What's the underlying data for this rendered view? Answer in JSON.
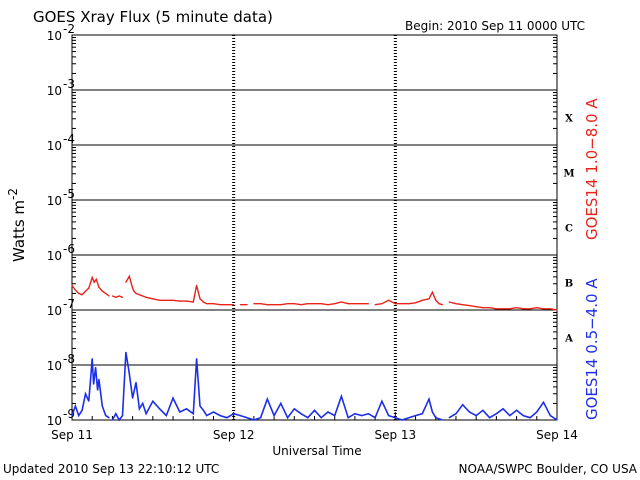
{
  "chart_data": {
    "type": "line",
    "title": "GOES Xray Flux (5 minute data)",
    "begin": "Begin:  2010 Sep 11 0000 UTC",
    "xlabel": "Universal Time",
    "ylabel": "Watts m",
    "ylabel_sup": "-2",
    "footer_left": "Updated 2010 Sep 13 22:10:12 UTC",
    "footer_right": "NOAA/SWPC Boulder, CO USA",
    "x_ticks": [
      "Sep 11",
      "Sep 12",
      "Sep 13",
      "Sep 14"
    ],
    "x_range_hours": [
      0,
      72
    ],
    "y_scale": "log",
    "y_ticks": [
      "10",
      "10",
      "10",
      "10",
      "10",
      "10",
      "10",
      "10"
    ],
    "y_tick_exponents": [
      "-2",
      "-3",
      "-4",
      "-5",
      "-6",
      "-7",
      "-8",
      "-9"
    ],
    "ylim": [
      1e-09,
      0.01
    ],
    "flare_classes": [
      "X",
      "M",
      "C",
      "B",
      "A"
    ],
    "series": [
      {
        "name": "GOES14 1.0−8.0 A",
        "color": "#e8231a",
        "x": [
          0,
          0.5,
          1,
          1.5,
          2,
          2.5,
          3,
          3.3,
          3.6,
          4,
          4.5,
          5,
          5.5,
          6,
          6.5,
          7,
          7.5,
          8,
          8.5,
          9,
          9.2,
          9.5,
          10,
          10.5,
          11,
          12,
          13,
          14,
          15,
          16,
          17,
          18,
          18.5,
          19,
          19.5,
          20,
          21,
          22,
          23,
          24,
          25,
          26,
          27,
          28,
          29,
          30,
          31,
          32,
          33,
          34,
          35,
          36,
          37,
          38,
          39,
          40,
          41,
          42,
          43,
          44,
          45,
          46,
          47,
          48,
          49,
          50,
          51,
          52,
          53,
          53.5,
          54,
          54.5,
          55,
          56,
          57,
          58,
          59,
          60,
          61,
          62,
          63,
          64,
          65,
          66,
          67,
          68,
          69,
          70,
          71,
          72
        ],
        "y": [
          2.8e-07,
          2.3e-07,
          2e-07,
          1.9e-07,
          2.2e-07,
          2.5e-07,
          3.9e-07,
          3.2e-07,
          3.6e-07,
          2.6e-07,
          2.2e-07,
          2e-07,
          1.8e-07,
          1.8e-07,
          1.7e-07,
          1.8e-07,
          1.7e-07,
          3.2e-07,
          4.1e-07,
          2.5e-07,
          2.2e-07,
          2e-07,
          1.9e-07,
          1.8e-07,
          1.7e-07,
          1.6e-07,
          1.5e-07,
          1.5e-07,
          1.5e-07,
          1.45e-07,
          1.45e-07,
          1.4e-07,
          2.8e-07,
          1.6e-07,
          1.4e-07,
          1.3e-07,
          1.3e-07,
          1.25e-07,
          1.25e-07,
          1.25e-07,
          1.25e-07,
          1.25e-07,
          1.3e-07,
          1.3e-07,
          1.25e-07,
          1.25e-07,
          1.25e-07,
          1.3e-07,
          1.3e-07,
          1.25e-07,
          1.3e-07,
          1.3e-07,
          1.3e-07,
          1.25e-07,
          1.3e-07,
          1.4e-07,
          1.3e-07,
          1.3e-07,
          1.3e-07,
          1.3e-07,
          1.25e-07,
          1.3e-07,
          1.5e-07,
          1.3e-07,
          1.3e-07,
          1.3e-07,
          1.35e-07,
          1.5e-07,
          1.6e-07,
          2.1e-07,
          1.5e-07,
          1.3e-07,
          1.25e-07,
          1.4e-07,
          1.3e-07,
          1.25e-07,
          1.2e-07,
          1.15e-07,
          1.1e-07,
          1.1e-07,
          1.05e-07,
          1.05e-07,
          1.05e-07,
          1.1e-07,
          1.05e-07,
          1.05e-07,
          1.1e-07,
          1.05e-07,
          1.05e-07,
          1e-07
        ],
        "gaps_after_x": [
          5.5,
          7.5,
          24,
          26,
          44,
          55
        ],
        "scale": "linear-value"
      },
      {
        "name": "GOES14 0.5−4.0 A",
        "color": "#1d2eea",
        "x": [
          0,
          0.5,
          1,
          1.5,
          2,
          2.5,
          3,
          3.2,
          3.5,
          3.8,
          4,
          4.5,
          5,
          5.5,
          6,
          6.5,
          7,
          7.5,
          8,
          8.5,
          9,
          9.5,
          10,
          10.5,
          11,
          12,
          13,
          14,
          15,
          16,
          17,
          18,
          18.5,
          19,
          19.5,
          20,
          21,
          22,
          23,
          24,
          25,
          26,
          27,
          28,
          29,
          30,
          31,
          32,
          33,
          34,
          35,
          36,
          37,
          38,
          39,
          40,
          41,
          42,
          43,
          44,
          45,
          46,
          47,
          48,
          49,
          50,
          51,
          52,
          53,
          53.5,
          54,
          55,
          56,
          57,
          58,
          59,
          60,
          61,
          62,
          63,
          64,
          65,
          66,
          67,
          68,
          69,
          70,
          71,
          72
        ],
        "y": [
          1.2e-09,
          1.8e-09,
          1.2e-09,
          1.5e-09,
          3e-09,
          2.2e-09,
          1.3e-08,
          4.5e-09,
          9e-09,
          3.5e-09,
          5.5e-09,
          1.8e-09,
          1.2e-09,
          1.1e-09,
          1e-09,
          1.3e-09,
          1e-09,
          1.2e-09,
          1.7e-08,
          7e-09,
          2.5e-09,
          4.8e-09,
          1.6e-09,
          2e-09,
          1.3e-09,
          2.2e-09,
          1.6e-09,
          1.2e-09,
          2.5e-09,
          1.4e-09,
          1.6e-09,
          1.3e-09,
          1.3e-08,
          1.8e-09,
          1.5e-09,
          1.2e-09,
          1.4e-09,
          1.2e-09,
          1.1e-09,
          1.3e-09,
          1.2e-09,
          1.1e-09,
          1e-09,
          1.1e-09,
          2.4e-09,
          1.2e-09,
          2e-09,
          1.1e-09,
          1.6e-09,
          1.3e-09,
          1.1e-09,
          1.5e-09,
          1.1e-09,
          1.4e-09,
          1.2e-09,
          2.7e-09,
          1.1e-09,
          1.3e-09,
          1.2e-09,
          1.3e-09,
          1.1e-09,
          2.2e-09,
          1.2e-09,
          1.1e-09,
          1e-09,
          1.1e-09,
          1.2e-09,
          1.3e-09,
          2.4e-09,
          1.4e-09,
          1.1e-09,
          1e-09,
          1.1e-09,
          1.3e-09,
          1.9e-09,
          1.4e-09,
          1.2e-09,
          1.5e-09,
          1.1e-09,
          1.3e-09,
          1.6e-09,
          1.2e-09,
          1.5e-09,
          1.2e-09,
          1.1e-09,
          1.4e-09,
          2.1e-09,
          1.2e-09,
          1e-09
        ],
        "gaps_after_x": [
          5.5,
          55
        ]
      }
    ],
    "grid": true,
    "legend": "right-vertical"
  }
}
